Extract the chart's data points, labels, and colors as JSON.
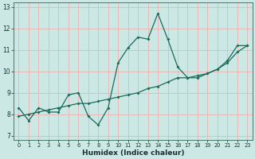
{
  "xlabel": "Humidex (Indice chaleur)",
  "ylabel": "",
  "bg_color": "#cce8e4",
  "grid_color": "#e8b8b8",
  "line_color": "#1a6b5a",
  "line1_x": [
    0,
    1,
    2,
    3,
    4,
    5,
    6,
    7,
    8,
    9,
    10,
    11,
    12,
    13,
    14,
    15,
    16,
    17,
    18,
    19,
    20,
    21,
    22,
    23
  ],
  "line1_y": [
    8.3,
    7.7,
    8.3,
    8.1,
    8.1,
    8.9,
    9.0,
    7.9,
    7.5,
    8.3,
    10.4,
    11.1,
    11.6,
    11.5,
    12.7,
    11.5,
    10.2,
    9.7,
    9.7,
    9.9,
    10.1,
    10.5,
    11.2,
    11.2
  ],
  "line2_x": [
    0,
    1,
    2,
    3,
    4,
    5,
    6,
    7,
    8,
    9,
    10,
    11,
    12,
    13,
    14,
    15,
    16,
    17,
    18,
    19,
    20,
    21,
    22,
    23
  ],
  "line2_y": [
    7.9,
    8.0,
    8.1,
    8.2,
    8.3,
    8.4,
    8.5,
    8.5,
    8.6,
    8.7,
    8.8,
    8.9,
    9.0,
    9.2,
    9.3,
    9.5,
    9.7,
    9.7,
    9.8,
    9.9,
    10.1,
    10.4,
    10.9,
    11.2
  ],
  "xlim": [
    0,
    23
  ],
  "ylim": [
    6.8,
    13.2
  ],
  "xticks": [
    0,
    1,
    2,
    3,
    4,
    5,
    6,
    7,
    8,
    9,
    10,
    11,
    12,
    13,
    14,
    15,
    16,
    17,
    18,
    19,
    20,
    21,
    22,
    23
  ],
  "yticks": [
    7,
    8,
    9,
    10,
    11,
    12,
    13
  ]
}
